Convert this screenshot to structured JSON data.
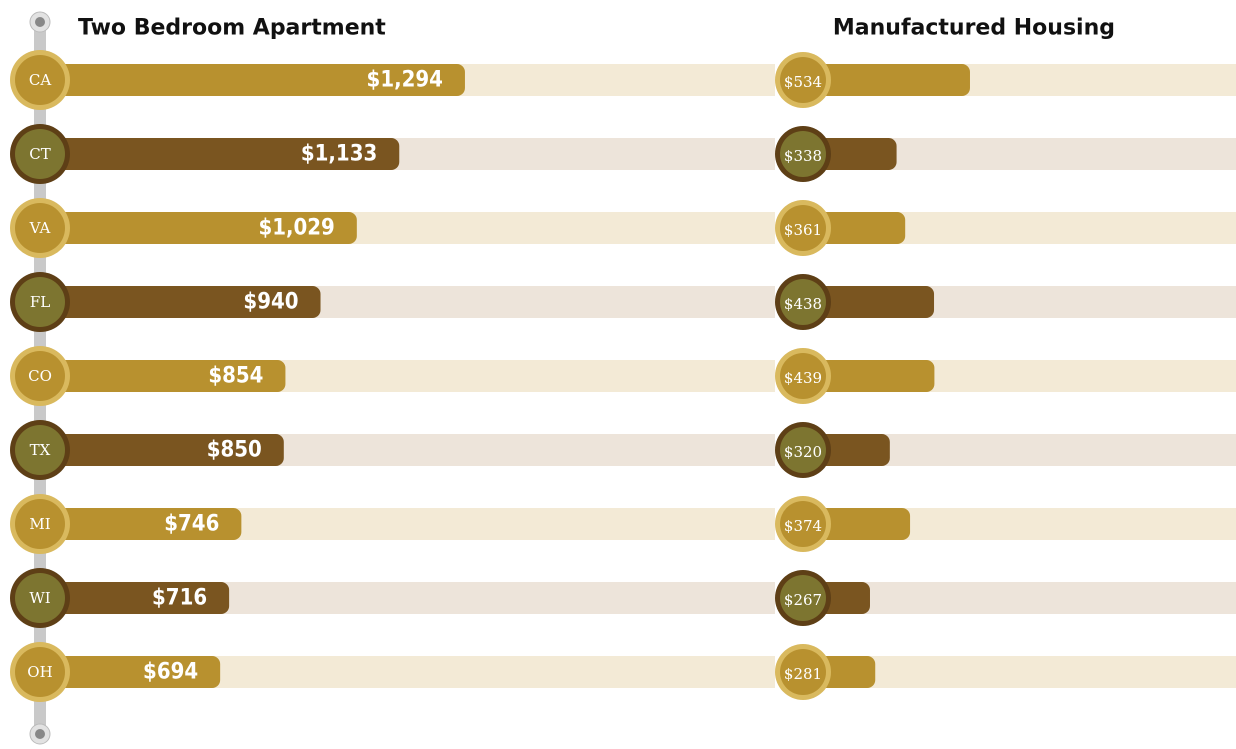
{
  "chart_data": [
    {
      "type": "bar",
      "title": "Two Bedroom Apartment",
      "categories": [
        "CA",
        "CT",
        "VA",
        "FL",
        "CO",
        "TX",
        "MI",
        "WI",
        "OH"
      ],
      "values": [
        1294,
        1133,
        1029,
        940,
        854,
        850,
        746,
        716,
        694
      ],
      "value_labels": [
        "$1,294",
        "$1,133",
        "$1,029",
        "$940",
        "$854",
        "$850",
        "$746",
        "$716",
        "$694"
      ],
      "colors": [
        "#b8912f",
        "#7a5520"
      ]
    },
    {
      "type": "bar",
      "title": "Manufactured Housing",
      "values": [
        534,
        338,
        361,
        438,
        439,
        320,
        374,
        267,
        281
      ],
      "value_labels": [
        "$534",
        "$338",
        "$361",
        "$438",
        "$439",
        "$320",
        "$374",
        "$267",
        "$281"
      ],
      "colors": [
        "#b8912f",
        "#7a5520"
      ]
    }
  ]
}
